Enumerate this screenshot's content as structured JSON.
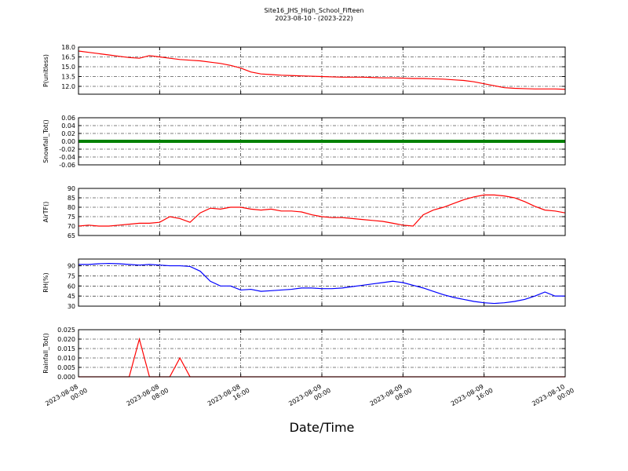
{
  "chart_data": {
    "type": "line",
    "title": "Site16_JHS_High_School_Fifteen",
    "subtitle": "2023-08-10 - (2023-222)",
    "xlabel": "Date/Time",
    "grid": true,
    "x": [
      "2023-08-08 00:00",
      "2023-08-08 01:00",
      "2023-08-08 02:00",
      "2023-08-08 03:00",
      "2023-08-08 04:00",
      "2023-08-08 05:00",
      "2023-08-08 06:00",
      "2023-08-08 07:00",
      "2023-08-08 08:00",
      "2023-08-08 09:00",
      "2023-08-08 10:00",
      "2023-08-08 11:00",
      "2023-08-08 12:00",
      "2023-08-08 13:00",
      "2023-08-08 14:00",
      "2023-08-08 15:00",
      "2023-08-08 16:00",
      "2023-08-08 17:00",
      "2023-08-08 18:00",
      "2023-08-08 19:00",
      "2023-08-08 20:00",
      "2023-08-08 21:00",
      "2023-08-08 22:00",
      "2023-08-08 23:00",
      "2023-08-09 00:00",
      "2023-08-09 01:00",
      "2023-08-09 02:00",
      "2023-08-09 03:00",
      "2023-08-09 04:00",
      "2023-08-09 05:00",
      "2023-08-09 06:00",
      "2023-08-09 07:00",
      "2023-08-09 08:00",
      "2023-08-09 09:00",
      "2023-08-09 10:00",
      "2023-08-09 11:00",
      "2023-08-09 12:00",
      "2023-08-09 13:00",
      "2023-08-09 14:00",
      "2023-08-09 15:00",
      "2023-08-09 16:00",
      "2023-08-09 17:00",
      "2023-08-09 18:00",
      "2023-08-09 19:00",
      "2023-08-09 20:00",
      "2023-08-09 21:00",
      "2023-08-09 22:00",
      "2023-08-09 23:00",
      "2023-08-10 00:00"
    ],
    "xlim": [
      "2023-08-08 00:00",
      "2023-08-10 00:00"
    ],
    "xticks": [
      "2023-08-08 00:00",
      "2023-08-08 08:00",
      "2023-08-08 16:00",
      "2023-08-09 00:00",
      "2023-08-09 08:00",
      "2023-08-09 16:00",
      "2023-08-10 00:00"
    ],
    "panels": [
      {
        "ylabel": "P(unitless)",
        "ylim": [
          10.8,
          18.0
        ],
        "yticks": [
          {
            "value": 12,
            "label": "12.0"
          },
          13.5,
          {
            "value": 15,
            "label": "15.0"
          },
          16.5,
          {
            "value": 18,
            "label": "18.0"
          }
        ],
        "series": [
          {
            "color": "#ff0000",
            "values": [
              17.4,
              17.2,
              17.0,
              16.8,
              16.6,
              16.4,
              16.3,
              16.7,
              16.5,
              16.3,
              16.1,
              16.0,
              15.9,
              15.7,
              15.5,
              15.2,
              14.8,
              14.2,
              13.9,
              13.8,
              13.7,
              13.65,
              13.6,
              13.55,
              13.5,
              13.45,
              13.4,
              13.4,
              13.4,
              13.35,
              13.3,
              13.3,
              13.25,
              13.2,
              13.2,
              13.15,
              13.1,
              13.0,
              12.9,
              12.7,
              12.4,
              12.1,
              11.8,
              11.7,
              11.65,
              11.6,
              11.6,
              11.6,
              11.55
            ]
          }
        ]
      },
      {
        "ylabel": "Snowfall_Tot()",
        "ylim": [
          -0.06,
          0.06
        ],
        "yticks": [
          -0.06,
          -0.04,
          -0.02,
          {
            "value": 0,
            "label": "0.00"
          },
          0.02,
          0.04,
          0.06
        ],
        "series": [
          {
            "color": "#008000",
            "values": [
              0,
              0,
              0,
              0,
              0,
              0,
              0,
              0,
              0,
              0,
              0,
              0,
              0,
              0,
              0,
              0,
              0,
              0,
              0,
              0,
              0,
              0,
              0,
              0,
              0,
              0,
              0,
              0,
              0,
              0,
              0,
              0,
              0,
              0,
              0,
              0,
              0,
              0,
              0,
              0,
              0,
              0,
              0,
              0,
              0,
              0,
              0,
              0,
              0
            ]
          }
        ]
      },
      {
        "ylabel": "AirTF()",
        "ylim": [
          65,
          90
        ],
        "yticks": [
          65,
          70,
          75,
          80,
          85,
          90
        ],
        "series": [
          {
            "color": "#ff0000",
            "values": [
              70,
              70.5,
              70,
              70,
              70.5,
              71,
              71.5,
              71.5,
              72,
              75,
              74,
              72,
              77,
              79.5,
              79,
              80,
              80,
              79,
              78.5,
              79,
              78,
              78,
              77.5,
              76,
              75,
              74.5,
              74.5,
              74,
              73.5,
              73,
              72.5,
              71.5,
              70.5,
              70,
              76,
              78.5,
              80,
              82,
              84,
              85.5,
              86.5,
              86.5,
              86,
              85,
              83,
              80.5,
              78.5,
              78,
              77
            ]
          }
        ]
      },
      {
        "ylabel": "RH(%)",
        "ylim": [
          30,
          100
        ],
        "yticks": [
          30,
          45,
          60,
          75,
          90
        ],
        "series": [
          {
            "color": "#0000ff",
            "values": [
              92,
              92,
              93,
              93.5,
              93,
              92,
              91,
              92,
              91,
              90,
              90,
              89,
              82,
              67,
              60,
              60,
              54,
              55,
              52,
              53,
              54,
              55,
              57,
              57,
              56,
              56,
              57,
              59,
              61,
              63,
              65,
              67,
              65,
              61,
              57,
              52,
              47,
              43,
              40,
              37,
              35,
              34,
              35,
              37,
              40,
              45,
              51,
              45,
              45
            ]
          }
        ]
      },
      {
        "ylabel": "Rainfall_Tot()",
        "ylim": [
          0,
          0.025
        ],
        "yticks": [
          {
            "value": 0,
            "label": "0.000"
          },
          0.005,
          {
            "value": 0.01,
            "label": "0.010"
          },
          0.015,
          {
            "value": 0.02,
            "label": "0.020"
          },
          0.025
        ],
        "series": [
          {
            "color": "#ff0000",
            "values": [
              0,
              0,
              0,
              0,
              0,
              0,
              0.02,
              0,
              0,
              0,
              0.01,
              0,
              0,
              0,
              0,
              0,
              0,
              0,
              0,
              0,
              0,
              0,
              0,
              0,
              0,
              0,
              0,
              0,
              0,
              0,
              0,
              0,
              0,
              0,
              0,
              0,
              0,
              0,
              0,
              0,
              0,
              0,
              0,
              0,
              0,
              0,
              0,
              0,
              0
            ]
          }
        ]
      }
    ]
  }
}
